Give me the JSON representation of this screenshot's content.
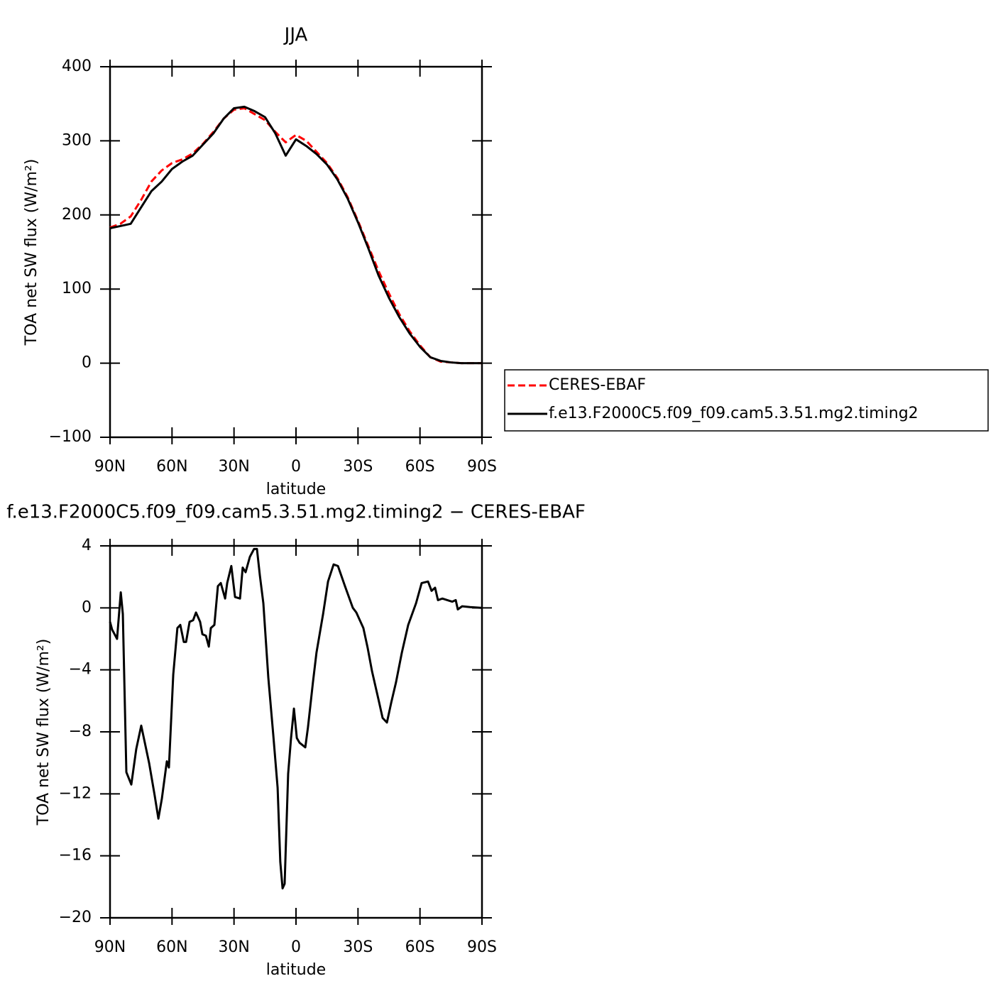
{
  "chart_data": [
    {
      "type": "line",
      "title": "JJA",
      "x_label": "latitude",
      "y_label": "TOA net SW flux (W/m²)",
      "x": [
        90,
        85,
        80,
        75,
        70,
        65,
        60,
        55,
        50,
        45,
        40,
        35,
        30,
        25,
        20,
        15,
        10,
        5,
        0,
        -5,
        -10,
        -15,
        -20,
        -25,
        -30,
        -35,
        -40,
        -45,
        -50,
        -55,
        -60,
        -65,
        -70,
        -75,
        -80,
        -85,
        -90
      ],
      "series": [
        {
          "name": "CERES-EBAF",
          "color": "#ff0000",
          "line_style": "dashed",
          "values": [
            183,
            188,
            198,
            220,
            245,
            260,
            270,
            275,
            283,
            296,
            312,
            330,
            342,
            344,
            336,
            328,
            312,
            298,
            308,
            300,
            285,
            270,
            250,
            224,
            192,
            158,
            124,
            94,
            66,
            43,
            24,
            8,
            2,
            1,
            0,
            0,
            0
          ]
        },
        {
          "name": "f.e13.F2000C5.f09_f09.cam5.3.51.mg2.timing2",
          "color": "#000000",
          "line_style": "solid",
          "values": [
            182,
            185,
            188,
            210,
            232,
            245,
            262,
            272,
            280,
            295,
            310,
            330,
            344,
            346,
            340,
            332,
            310,
            280,
            302,
            293,
            282,
            268,
            248,
            222,
            190,
            155,
            118,
            88,
            62,
            40,
            22,
            8,
            3,
            1,
            0,
            0,
            0
          ]
        }
      ],
      "xlim": [
        90,
        -90
      ],
      "xticks": [
        {
          "value": 90,
          "label": "90N"
        },
        {
          "value": 60,
          "label": "60N"
        },
        {
          "value": 30,
          "label": "30N"
        },
        0,
        {
          "value": -30,
          "label": "30S"
        },
        {
          "value": -60,
          "label": "60S"
        },
        {
          "value": -90,
          "label": "90S"
        }
      ],
      "ylim": [
        -100,
        400
      ],
      "yticks": [
        {
          "value": -100,
          "label": "−100"
        },
        0,
        100,
        200,
        300,
        400
      ],
      "legend": "right"
    },
    {
      "type": "line",
      "title": "f.e13.F2000C5.f09_f09.cam5.3.51.mg2.timing2 − CERES-EBAF",
      "x_label": "latitude",
      "y_label": "TOA net SW flux (W/m²)",
      "x": [
        90,
        89,
        86.6,
        84.8,
        83.8,
        82.1,
        79.7,
        77.3,
        74.9,
        71.1,
        68.4,
        66.6,
        64.9,
        62.5,
        61.5,
        59.4,
        57.4,
        56,
        54.3,
        53.2,
        51.5,
        49.8,
        48.4,
        46.4,
        45.3,
        43.6,
        42.2,
        41.2,
        39.5,
        37.8,
        36.4,
        34.3,
        33.3,
        31.3,
        29.5,
        27.1,
        25.8,
        24.4,
        22.3,
        20.3,
        18.9,
        17.5,
        15.8,
        13.4,
        11,
        8.9,
        7.6,
        6.5,
        5.5,
        3.8,
        2.4,
        1,
        -0.4,
        -1.7,
        -4.5,
        -5.8,
        -8.2,
        -9.9,
        -13.1,
        -15.5,
        -18.2,
        -20.3,
        -23.7,
        -27.5,
        -29.2,
        -32.6,
        -34.7,
        -36.8,
        -39.9,
        -41.9,
        -44,
        -46.1,
        -48.4,
        -51.2,
        -54.3,
        -58.1,
        -60.8,
        -63.9,
        -65.6,
        -67.3,
        -68.7,
        -70.8,
        -75.6,
        -77.3,
        -78.3,
        -80.4,
        -84.2,
        -90
      ],
      "series": [
        {
          "color": "#000000",
          "line_style": "solid",
          "values": [
            -0.9,
            -1.4,
            -2.0,
            1.0,
            -0.4,
            -10.6,
            -11.4,
            -9.1,
            -7.6,
            -10.0,
            -12.1,
            -13.6,
            -12.3,
            -9.9,
            -10.3,
            -4.3,
            -1.3,
            -1.1,
            -2.2,
            -2.2,
            -0.9,
            -0.8,
            -0.3,
            -0.9,
            -1.7,
            -1.8,
            -2.5,
            -1.3,
            -1.1,
            1.4,
            1.6,
            0.6,
            1.6,
            2.7,
            0.7,
            0.6,
            2.6,
            2.3,
            3.3,
            3.8,
            3.8,
            2.1,
            0.3,
            -4.5,
            -8.2,
            -11.6,
            -16.4,
            -18.1,
            -17.8,
            -10.7,
            -8.4,
            -6.5,
            -8.4,
            -8.7,
            -9.0,
            -7.7,
            -4.8,
            -2.9,
            -0.4,
            1.7,
            2.8,
            2.7,
            1.4,
            0.0,
            -0.3,
            -1.3,
            -2.6,
            -4.1,
            -5.9,
            -7.1,
            -7.4,
            -6.1,
            -4.8,
            -2.9,
            -1.1,
            0.3,
            1.6,
            1.7,
            1.1,
            1.3,
            0.5,
            0.6,
            0.4,
            0.5,
            -0.1,
            0.1,
            0.05,
            0
          ]
        }
      ],
      "xlim": [
        90,
        -90
      ],
      "xticks": [
        {
          "value": 90,
          "label": "90N"
        },
        {
          "value": 60,
          "label": "60N"
        },
        {
          "value": 30,
          "label": "30N"
        },
        0,
        {
          "value": -30,
          "label": "30S"
        },
        {
          "value": -60,
          "label": "60S"
        },
        {
          "value": -90,
          "label": "90S"
        }
      ],
      "ylim": [
        -20,
        4
      ],
      "yticks": [
        {
          "value": -20,
          "label": "−20"
        },
        {
          "value": -16,
          "label": "−16"
        },
        {
          "value": -12,
          "label": "−12"
        },
        {
          "value": -8,
          "label": "−8"
        },
        {
          "value": -4,
          "label": "−4"
        },
        0,
        4
      ]
    }
  ]
}
